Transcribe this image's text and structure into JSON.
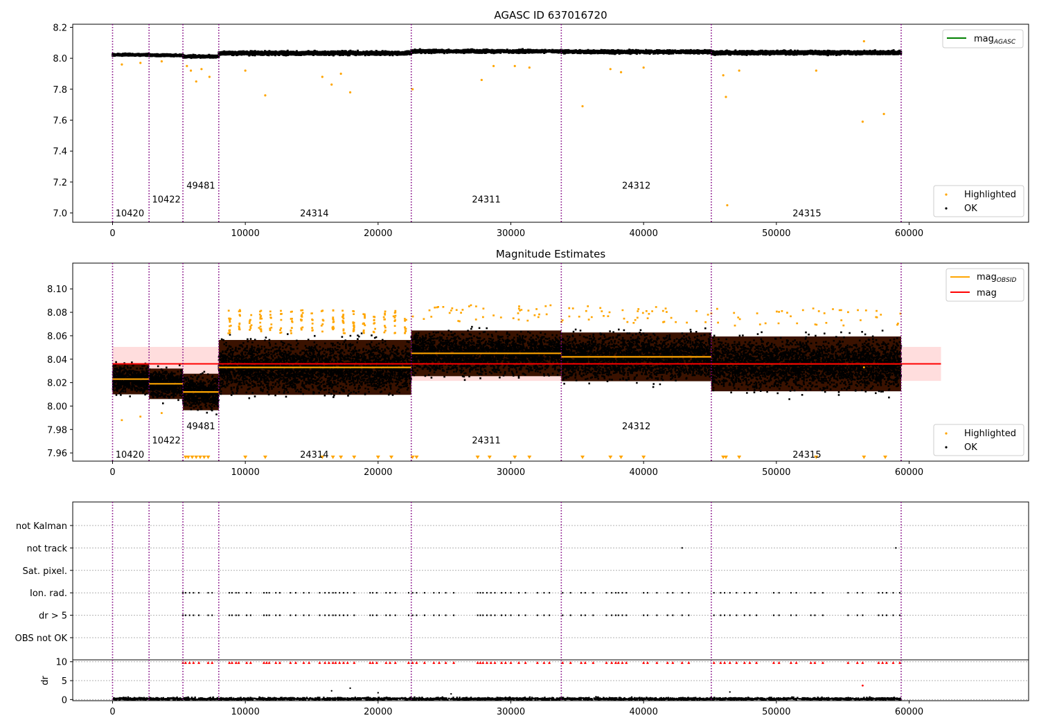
{
  "chart_data": [
    {
      "type": "scatter",
      "title": "AGASC ID 637016720",
      "xlabel": "",
      "ylabel": "",
      "xlim": [
        -3000,
        69000
      ],
      "ylim": [
        6.94,
        8.22
      ],
      "xticks": [
        "0",
        "10000",
        "20000",
        "30000",
        "40000",
        "50000",
        "60000"
      ],
      "yticks": [
        "7.0",
        "7.2",
        "7.4",
        "7.6",
        "7.8",
        "8.0",
        "8.2"
      ],
      "obsid_boundaries": [
        0,
        2750,
        5300,
        8000,
        22500,
        33800,
        45100,
        59400
      ],
      "obsid_labels": [
        {
          "text": "10420",
          "x": 1300,
          "y": 7.0
        },
        {
          "text": "10422",
          "x": 4050,
          "y": 7.09
        },
        {
          "text": "49481",
          "x": 6650,
          "y": 7.18
        },
        {
          "text": "24314",
          "x": 15200,
          "y": 7.0
        },
        {
          "text": "24311",
          "x": 28150,
          "y": 7.09
        },
        {
          "text": "24312",
          "x": 39450,
          "y": 7.18
        },
        {
          "text": "24315",
          "x": 52300,
          "y": 7.0
        }
      ],
      "segments": [
        {
          "x0": 0,
          "x1": 2750,
          "center": 8.023,
          "spread": 0.01
        },
        {
          "x0": 2750,
          "x1": 5300,
          "center": 8.019,
          "spread": 0.01
        },
        {
          "x0": 5300,
          "x1": 8000,
          "center": 8.012,
          "spread": 0.012
        },
        {
          "x0": 8000,
          "x1": 22500,
          "center": 8.033,
          "spread": 0.018
        },
        {
          "x0": 22500,
          "x1": 33800,
          "center": 8.045,
          "spread": 0.015
        },
        {
          "x0": 33800,
          "x1": 45100,
          "center": 8.042,
          "spread": 0.016
        },
        {
          "x0": 45100,
          "x1": 59400,
          "center": 8.036,
          "spread": 0.018
        }
      ],
      "highlighted_outliers": [
        [
          700,
          7.96
        ],
        [
          2100,
          7.97
        ],
        [
          3700,
          7.98
        ],
        [
          5600,
          7.95
        ],
        [
          5900,
          7.92
        ],
        [
          6300,
          7.85
        ],
        [
          6700,
          7.93
        ],
        [
          7300,
          7.88
        ],
        [
          10000,
          7.92
        ],
        [
          11500,
          7.76
        ],
        [
          15800,
          7.88
        ],
        [
          16500,
          7.83
        ],
        [
          17200,
          7.9
        ],
        [
          17900,
          7.78
        ],
        [
          22600,
          7.8
        ],
        [
          27800,
          7.86
        ],
        [
          28700,
          7.95
        ],
        [
          30300,
          7.95
        ],
        [
          31400,
          7.94
        ],
        [
          35400,
          7.69
        ],
        [
          37500,
          7.93
        ],
        [
          38300,
          7.91
        ],
        [
          40000,
          7.94
        ],
        [
          46000,
          7.89
        ],
        [
          46200,
          7.75
        ],
        [
          46300,
          7.05
        ],
        [
          47200,
          7.92
        ],
        [
          53000,
          7.92
        ],
        [
          56500,
          7.59
        ],
        [
          56600,
          8.11
        ],
        [
          58100,
          7.64
        ]
      ],
      "legend": [
        {
          "label": "mag",
          "sub": "AGASC",
          "color": "#008000",
          "kind": "line"
        },
        {
          "label": "Highlighted",
          "color": "#ffa500",
          "kind": "dot"
        },
        {
          "label": "OK",
          "color": "#000000",
          "kind": "dot"
        }
      ]
    },
    {
      "type": "scatter",
      "title": "Magnitude Estimates",
      "xlabel": "",
      "ylabel": "",
      "xlim": [
        -3000,
        69000
      ],
      "ylim": [
        7.953,
        8.122
      ],
      "xticks": [
        "0",
        "10000",
        "20000",
        "30000",
        "40000",
        "50000",
        "60000"
      ],
      "yticks": [
        "7.96",
        "7.98",
        "8.00",
        "8.02",
        "8.04",
        "8.06",
        "8.08",
        "8.10"
      ],
      "mag": 8.036,
      "mag_band": [
        8.0215,
        8.0505
      ],
      "mag_band_x": [
        0,
        62400
      ],
      "obsid_mags": [
        {
          "x0": 0,
          "x1": 2750,
          "mag": 8.023
        },
        {
          "x0": 2750,
          "x1": 5300,
          "mag": 8.019
        },
        {
          "x0": 5300,
          "x1": 8000,
          "mag": 8.012
        },
        {
          "x0": 8000,
          "x1": 22500,
          "mag": 8.033
        },
        {
          "x0": 22500,
          "x1": 33800,
          "mag": 8.045
        },
        {
          "x0": 33800,
          "x1": 45100,
          "mag": 8.042
        },
        {
          "x0": 45100,
          "x1": 59400,
          "mag": 8.036
        }
      ],
      "obsid_labels": [
        {
          "text": "10420",
          "x": 1300,
          "y": 7.959
        },
        {
          "text": "10422",
          "x": 4050,
          "y": 7.971
        },
        {
          "text": "49481",
          "x": 6650,
          "y": 7.983
        },
        {
          "text": "24314",
          "x": 15200,
          "y": 7.959
        },
        {
          "text": "24311",
          "x": 28150,
          "y": 7.971
        },
        {
          "text": "24312",
          "x": 39450,
          "y": 7.983
        },
        {
          "text": "24315",
          "x": 52300,
          "y": 7.959
        }
      ],
      "clipped_markers": [
        5500,
        5700,
        6000,
        6300,
        6600,
        6900,
        7200,
        10000,
        11500,
        15800,
        16600,
        17200,
        18200,
        20000,
        21000,
        22600,
        22900,
        27500,
        28400,
        30300,
        31400,
        35400,
        37500,
        38300,
        40000,
        46000,
        46200,
        47200,
        53000,
        56600,
        58200
      ],
      "legend": [
        {
          "label": "mag",
          "sub": "OBSID",
          "color": "#ffa500",
          "kind": "line"
        },
        {
          "label": "mag",
          "color": "#ff0000",
          "kind": "line"
        },
        {
          "label": "Highlighted",
          "color": "#ffa500",
          "kind": "dot"
        },
        {
          "label": "OK",
          "color": "#000000",
          "kind": "dot"
        }
      ]
    },
    {
      "type": "scatter",
      "title": "",
      "xlabel": "",
      "ylabel": "",
      "xlim": [
        -3000,
        69000
      ],
      "categories": [
        "OBS not OK",
        "dr > 5",
        "Ion. rad.",
        "Sat. pixel.",
        "not track",
        "not Kalman"
      ],
      "flag_points": {
        "not track": [
          42900,
          59000
        ],
        "Ion. rad.": [
          5300,
          5500,
          5800,
          6100,
          6500,
          7200,
          7500,
          8800,
          9000,
          9300,
          9500,
          10100,
          10400,
          11400,
          11600,
          11800,
          12300,
          12600,
          13400,
          13800,
          14400,
          14800,
          15600,
          16000,
          16300,
          16600,
          16800,
          17100,
          17400,
          17700,
          18200,
          19400,
          19600,
          19900,
          20600,
          20900,
          21300,
          22300,
          22600,
          22900,
          23500,
          24200,
          24600,
          25100,
          25700,
          27500,
          27700,
          27900,
          28200,
          28500,
          28800,
          29300,
          29600,
          30000,
          30600,
          31100,
          32000,
          32500,
          32900,
          33900,
          34500,
          35300,
          35600,
          36200,
          37200,
          37600,
          37900,
          38100,
          38400,
          38700,
          40000,
          40300,
          41000,
          41800,
          42200,
          42900,
          43400,
          45300,
          45800,
          46100,
          46500,
          47000,
          47600,
          48000,
          48500,
          49800,
          50200,
          51100,
          51500,
          52600,
          52900,
          53500,
          55400,
          56100,
          56500,
          57700,
          58000,
          58300,
          58800,
          59300
        ],
        "dr > 5": [
          5300,
          5500,
          5800,
          6100,
          6500,
          7200,
          7500,
          8800,
          9000,
          9300,
          9500,
          10100,
          10400,
          11400,
          11600,
          11800,
          12300,
          12600,
          13400,
          13800,
          14400,
          14800,
          15600,
          16000,
          16300,
          16600,
          16800,
          17100,
          17400,
          17700,
          18200,
          19400,
          19600,
          19900,
          20600,
          20900,
          21300,
          22300,
          22600,
          22900,
          23500,
          24200,
          24600,
          25100,
          25700,
          27500,
          27700,
          27900,
          28200,
          28500,
          28800,
          29300,
          29600,
          30000,
          30600,
          31100,
          32000,
          32500,
          32900,
          33900,
          34500,
          35300,
          35600,
          36200,
          37200,
          37600,
          37900,
          38100,
          38400,
          38700,
          40000,
          40300,
          41000,
          41800,
          42200,
          42900,
          43400,
          45300,
          45800,
          46100,
          46500,
          47000,
          47600,
          48000,
          48500,
          49800,
          50200,
          51100,
          51500,
          52600,
          52900,
          53500,
          55400,
          56100,
          56500,
          57700,
          58000,
          58300,
          58800,
          59300
        ]
      }
    },
    {
      "type": "scatter",
      "title": "",
      "xlabel": "",
      "ylabel": "dr",
      "xlim": [
        -3000,
        69000
      ],
      "ylim": [
        -0.3,
        10.5
      ],
      "xticks": [
        "0",
        "10000",
        "20000",
        "30000",
        "40000",
        "50000",
        "60000"
      ],
      "yticks": [
        "0",
        "5",
        "10"
      ],
      "cap_markers": [
        5300,
        5500,
        5800,
        6100,
        6500,
        7200,
        7500,
        8800,
        9000,
        9300,
        9500,
        10100,
        10400,
        11400,
        11600,
        11800,
        12300,
        12600,
        13400,
        13800,
        14400,
        14800,
        15600,
        16000,
        16300,
        16600,
        16800,
        17100,
        17400,
        17700,
        18200,
        19400,
        19600,
        19900,
        20600,
        20900,
        21300,
        22300,
        22600,
        22900,
        23500,
        24200,
        24600,
        25100,
        25700,
        27500,
        27700,
        27900,
        28200,
        28500,
        28800,
        29300,
        29600,
        30000,
        30600,
        31100,
        32000,
        32500,
        32900,
        33900,
        34500,
        35300,
        35600,
        36200,
        37200,
        37600,
        37900,
        38100,
        38400,
        38700,
        40000,
        40300,
        41000,
        41800,
        42200,
        42900,
        43400,
        45300,
        45800,
        46100,
        46500,
        47000,
        47600,
        48000,
        48500,
        49800,
        50200,
        51100,
        51500,
        52600,
        52900,
        53500,
        55400,
        56100,
        56500,
        57700,
        58000,
        58300,
        58800,
        59300
      ],
      "highlighted_outliers": [
        [
          56500,
          3.7
        ]
      ],
      "scatter_outliers": [
        [
          16500,
          2.3
        ],
        [
          17900,
          3.0
        ],
        [
          20000,
          1.8
        ],
        [
          25500,
          1.5
        ],
        [
          46500,
          2.0
        ]
      ]
    }
  ]
}
